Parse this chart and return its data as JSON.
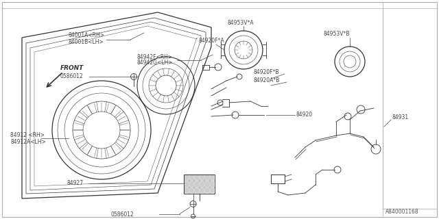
{
  "bg_color": "#ffffff",
  "lc": "#333333",
  "tc": "#444444",
  "border_color": "#999999",
  "diagram_ref": "A840001168",
  "labels": {
    "84001A_RH": "84001A<RH>",
    "84001B_LH": "84001B<LH>",
    "84942F_RH": "84942F<RH>",
    "84942G_LH": "84942G<LH>",
    "84912_RH": "84912 <RH>",
    "84912A_LH": "84912A<LH>",
    "84953V_A": "84953V*A",
    "84953V_B": "84953V*B",
    "84920F_A": "84920F*A",
    "84920F_B": "84920F*B",
    "84920A_B": "84920A*B",
    "84920": "84920",
    "84931": "84931",
    "84927": "84927",
    "0586012_1": "0586012",
    "0586012_2": "0586012",
    "front": "FRONT"
  },
  "figsize": [
    6.4,
    3.2
  ],
  "dpi": 100
}
